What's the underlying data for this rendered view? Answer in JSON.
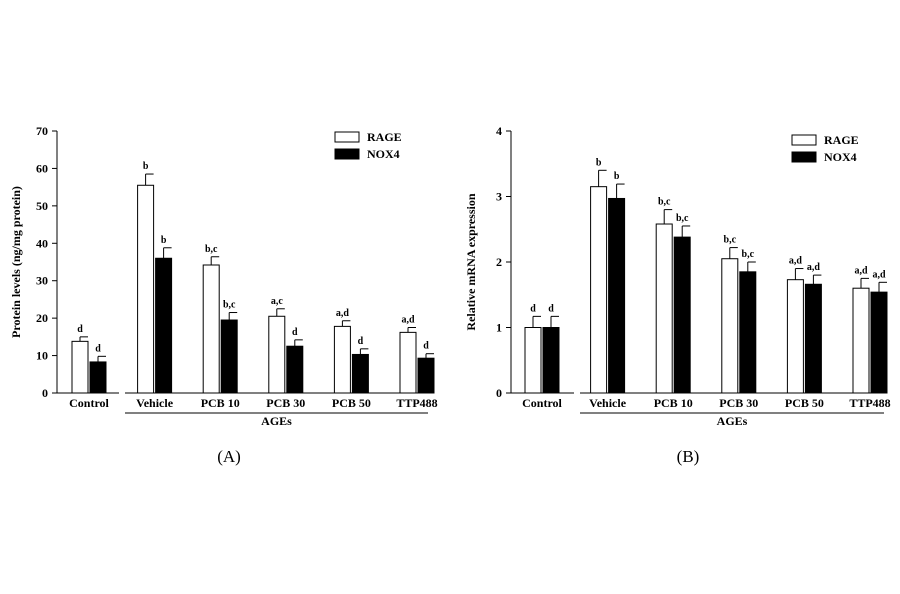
{
  "chart_data": [
    {
      "type": "bar",
      "panel_label": "(A)",
      "categories": [
        "Control",
        "Vehicle",
        "PCB 10",
        "PCB 30",
        "PCB 50",
        "TTP488"
      ],
      "group_label": "AGEs",
      "xlabel": "",
      "ylabel": "Protein levels (ng/mg protein)",
      "ylim": [
        0,
        70
      ],
      "yticks": [
        0,
        10,
        20,
        30,
        40,
        50,
        60,
        70
      ],
      "grid": false,
      "legend_position": "top-right",
      "series": [
        {
          "name": "RAGE",
          "color": "#ffffff",
          "values": [
            13.8,
            55.5,
            34.2,
            20.5,
            17.8,
            16.2
          ],
          "errors": [
            1.2,
            3.0,
            2.2,
            2.0,
            1.5,
            1.3
          ],
          "labels": [
            "d",
            "b",
            "b,c",
            "a,c",
            "a,d",
            "a,d"
          ]
        },
        {
          "name": "NOX4",
          "color": "#000000",
          "values": [
            8.3,
            36.0,
            19.5,
            12.5,
            10.3,
            9.3
          ],
          "errors": [
            1.5,
            2.8,
            2.0,
            1.7,
            1.5,
            1.2
          ],
          "labels": [
            "d",
            "b",
            "b,c",
            "d",
            "d",
            "d"
          ]
        }
      ]
    },
    {
      "type": "bar",
      "panel_label": "(B)",
      "categories": [
        "Control",
        "Vehicle",
        "PCB 10",
        "PCB 30",
        "PCB 50",
        "TTP488"
      ],
      "group_label": "AGEs",
      "xlabel": "",
      "ylabel": "Relative mRNA expression",
      "ylim": [
        0,
        4
      ],
      "yticks": [
        0,
        1,
        2,
        3,
        4
      ],
      "grid": false,
      "legend_position": "top-right",
      "series": [
        {
          "name": "RAGE",
          "color": "#ffffff",
          "values": [
            1.0,
            3.15,
            2.58,
            2.05,
            1.73,
            1.6
          ],
          "errors": [
            0.17,
            0.25,
            0.22,
            0.17,
            0.17,
            0.15
          ],
          "labels": [
            "d",
            "b",
            "b,c",
            "b,c",
            "a,d",
            "a,d"
          ]
        },
        {
          "name": "NOX4",
          "color": "#000000",
          "values": [
            1.0,
            2.97,
            2.38,
            1.85,
            1.66,
            1.54
          ],
          "errors": [
            0.17,
            0.22,
            0.17,
            0.15,
            0.14,
            0.15
          ],
          "labels": [
            "d",
            "b",
            "b,c",
            "b,c",
            "a,d",
            "a,d"
          ]
        }
      ]
    }
  ]
}
